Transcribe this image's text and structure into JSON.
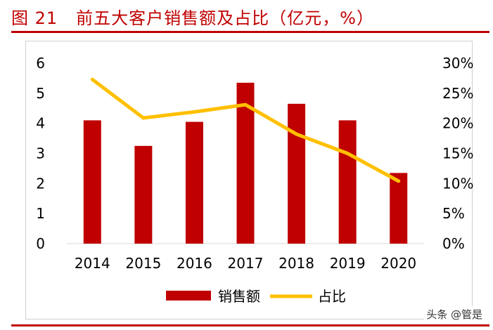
{
  "figure": {
    "number": "图 21",
    "title": "前五大客户销售额及占比（亿元，%）"
  },
  "watermark": "头条 @管是",
  "colors": {
    "bar": "#c00000",
    "line": "#ffc000",
    "rule": "#c00000",
    "axis": "#d9d9d9",
    "text": "#000000"
  },
  "chart_data": {
    "type": "bar",
    "categories": [
      "2014",
      "2015",
      "2016",
      "2017",
      "2018",
      "2019",
      "2020"
    ],
    "series": [
      {
        "name": "销售额",
        "type": "bar",
        "axis": "left",
        "values": [
          4.1,
          3.25,
          4.05,
          5.35,
          4.65,
          4.1,
          2.35
        ]
      },
      {
        "name": "占比",
        "type": "line",
        "axis": "right",
        "values": [
          27.3,
          20.9,
          21.9,
          23.1,
          18.2,
          15.0,
          10.4
        ]
      }
    ],
    "ylim": [
      0,
      6
    ],
    "yticks": [
      "0",
      "1",
      "2",
      "3",
      "4",
      "5",
      "6"
    ],
    "y2lim": [
      0,
      30
    ],
    "y2ticks": [
      "0%",
      "5%",
      "10%",
      "15%",
      "20%",
      "25%",
      "30%"
    ],
    "grid": false,
    "legend": "bottom"
  }
}
